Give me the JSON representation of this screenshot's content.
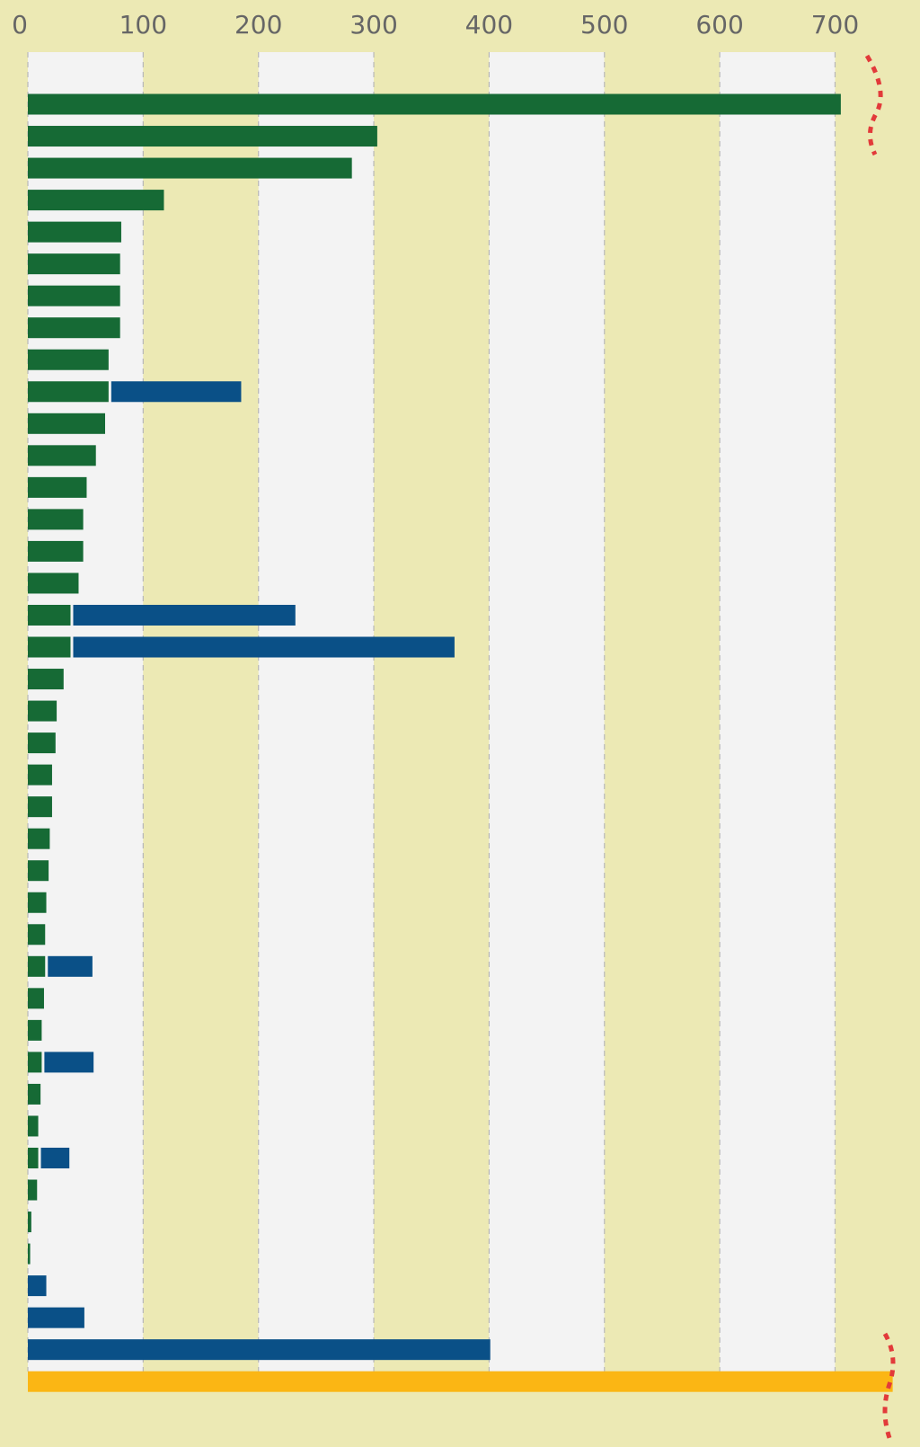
{
  "colors": {
    "background": "#ece9b4",
    "band_light": "#f3f3f3",
    "band_tan": "#ece9b4",
    "gridline": "#b8b8b8",
    "tick_text": "#666666",
    "series_green": "#166a35",
    "series_blue": "#0a5087",
    "series_total": "#fbb614",
    "break_marker": "#e23a3a"
  },
  "chart_data": {
    "type": "bar",
    "orientation": "horizontal",
    "title": "",
    "xlabel": "",
    "ylabel": "",
    "xlim": [
      0,
      750
    ],
    "x_ticks": [
      "0",
      "100",
      "200",
      "300",
      "400",
      "500",
      "600",
      "700"
    ],
    "x_axis_position": "top",
    "grid": true,
    "legend": "none",
    "axis_break": true,
    "series": [
      {
        "color_key": "series_green",
        "values": [
          705,
          303,
          281,
          118,
          81,
          80,
          80,
          80,
          70,
          70,
          67,
          59,
          51,
          48,
          48,
          44,
          37,
          37,
          31,
          25,
          24,
          21,
          21,
          19,
          18,
          16,
          15,
          15,
          14,
          12,
          12,
          11,
          9,
          9,
          8,
          3,
          2,
          null,
          null,
          null,
          null
        ]
      },
      {
        "color_key": "series_blue",
        "values": [
          null,
          null,
          null,
          null,
          null,
          null,
          null,
          null,
          null,
          115,
          null,
          null,
          null,
          null,
          null,
          null,
          195,
          333,
          null,
          null,
          null,
          null,
          null,
          null,
          null,
          null,
          null,
          41,
          null,
          null,
          45,
          null,
          null,
          27,
          null,
          null,
          null,
          16,
          49,
          401,
          null
        ]
      },
      {
        "color_key": "series_total",
        "values": [
          null,
          null,
          null,
          null,
          null,
          null,
          null,
          null,
          null,
          null,
          null,
          null,
          null,
          null,
          null,
          null,
          null,
          null,
          null,
          null,
          null,
          null,
          null,
          null,
          null,
          null,
          null,
          null,
          null,
          null,
          null,
          null,
          null,
          null,
          null,
          null,
          null,
          null,
          null,
          null,
          750
        ]
      }
    ]
  }
}
